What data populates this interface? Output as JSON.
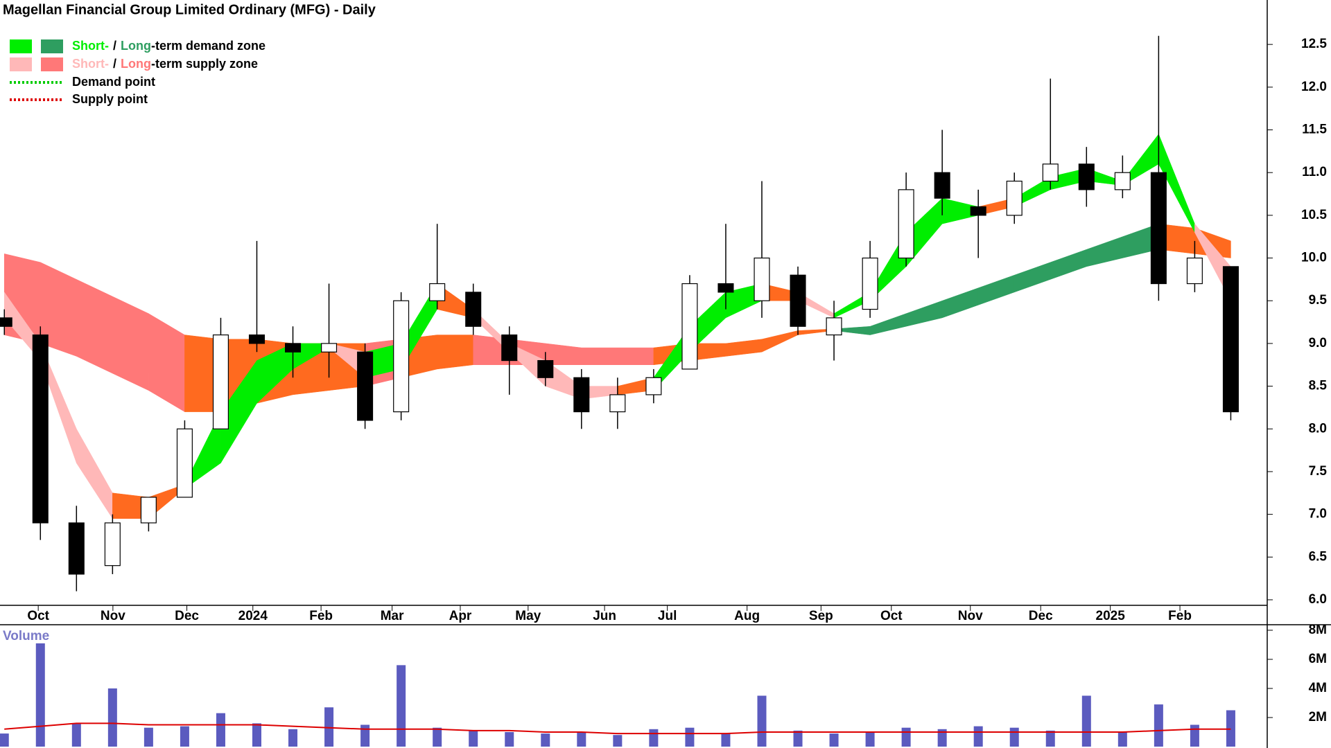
{
  "chart_data": [
    {
      "type": "candlestick",
      "title": "Magellan Financial Group Limited Ordinary (MFG) - Daily",
      "legend": {
        "zones": [
          {
            "short": "Short-",
            "sep": "/",
            "long": "Long",
            "rest": "-term demand zone",
            "short_color": "#00ee00",
            "long_color": "#2e9e60"
          },
          {
            "short": "Short-",
            "sep": "/",
            "long": "Long",
            "rest": "-term supply zone",
            "short_color": "#ffb8b8",
            "long_color": "#ff7878"
          }
        ],
        "points": [
          {
            "label": "Demand point",
            "color": "#00cc00"
          },
          {
            "label": "Supply point",
            "color": "#dd0000"
          }
        ]
      },
      "xlim": [
        -0.12,
        35.01
      ],
      "xticks": [
        {
          "value": 0.94,
          "label": "Oct"
        },
        {
          "value": 3.01,
          "label": "Nov"
        },
        {
          "value": 5.06,
          "label": "Dec"
        },
        {
          "value": 6.89,
          "label": "2024"
        },
        {
          "value": 8.78,
          "label": "Feb"
        },
        {
          "value": 10.75,
          "label": "Mar"
        },
        {
          "value": 12.64,
          "label": "Apr"
        },
        {
          "value": 14.52,
          "label": "May"
        },
        {
          "value": 16.64,
          "label": "Jun"
        },
        {
          "value": 18.38,
          "label": "Jul"
        },
        {
          "value": 20.59,
          "label": "Aug"
        },
        {
          "value": 22.64,
          "label": "Sep"
        },
        {
          "value": 24.59,
          "label": "Oct"
        },
        {
          "value": 26.78,
          "label": "Nov"
        },
        {
          "value": 28.73,
          "label": "Dec"
        },
        {
          "value": 30.66,
          "label": "2025"
        },
        {
          "value": 32.59,
          "label": "Feb"
        }
      ],
      "ylim": [
        5.935,
        13.02
      ],
      "yticks": [
        {
          "value": 6.0,
          "label": "6.0"
        },
        {
          "value": 6.5,
          "label": "6.5"
        },
        {
          "value": 7.0,
          "label": "7.0"
        },
        {
          "value": 7.5,
          "label": "7.5"
        },
        {
          "value": 8.0,
          "label": "8.0"
        },
        {
          "value": 8.5,
          "label": "8.5"
        },
        {
          "value": 9.0,
          "label": "9.0"
        },
        {
          "value": 9.5,
          "label": "9.5"
        },
        {
          "value": 10.0,
          "label": "10.0"
        },
        {
          "value": 10.5,
          "label": "10.5"
        },
        {
          "value": 11.0,
          "label": "11.0"
        },
        {
          "value": 11.5,
          "label": "11.5"
        },
        {
          "value": 12.0,
          "label": "12.0"
        },
        {
          "value": 12.5,
          "label": "12.5"
        }
      ],
      "open": [
        9.3,
        9.1,
        6.9,
        6.4,
        6.9,
        7.2,
        8.0,
        9.1,
        9.0,
        8.9,
        8.9,
        8.2,
        9.5,
        9.6,
        9.1,
        8.8,
        8.6,
        8.2,
        8.4,
        8.7,
        9.7,
        9.5,
        9.8,
        9.1,
        9.4,
        10.0,
        11.0,
        10.6,
        10.5,
        10.9,
        11.1,
        10.8,
        11.0,
        9.7,
        9.9
      ],
      "high": [
        9.4,
        9.2,
        7.1,
        7.0,
        7.2,
        8.1,
        9.3,
        10.2,
        9.2,
        9.7,
        9.0,
        9.6,
        10.4,
        9.7,
        9.2,
        8.9,
        8.7,
        8.6,
        8.7,
        9.8,
        10.4,
        10.9,
        9.9,
        9.5,
        10.2,
        11.0,
        11.5,
        10.8,
        11.0,
        12.1,
        11.3,
        11.2,
        12.6,
        10.2,
        9.9
      ],
      "low": [
        9.1,
        6.7,
        6.1,
        6.3,
        6.8,
        7.2,
        8.0,
        8.9,
        8.6,
        8.6,
        8.0,
        8.1,
        9.4,
        9.1,
        8.4,
        8.5,
        8.0,
        8.0,
        8.3,
        8.7,
        9.4,
        9.3,
        9.1,
        8.8,
        9.3,
        9.9,
        10.5,
        10.0,
        10.4,
        10.8,
        10.6,
        10.7,
        9.5,
        9.6,
        8.1
      ],
      "close": [
        9.2,
        6.9,
        6.3,
        6.9,
        7.2,
        8.0,
        9.1,
        9.0,
        8.9,
        9.0,
        8.1,
        9.5,
        9.7,
        9.2,
        8.8,
        8.6,
        8.2,
        8.4,
        8.6,
        9.7,
        9.6,
        10.0,
        9.2,
        9.3,
        10.0,
        10.8,
        10.7,
        10.5,
        10.9,
        11.1,
        10.8,
        11.0,
        9.7,
        10.0,
        8.2
      ],
      "up_color": "#ffffff",
      "down_color": "#000000",
      "zones": [
        {
          "upper": [
            10.05,
            9.95,
            9.75,
            9.55,
            9.35,
            9.1,
            9.05,
            9.05,
            9.0,
            9.0,
            9.0,
            9.05,
            9.1,
            9.1,
            9.05,
            9.0,
            8.95,
            8.95,
            8.95,
            9.0,
            9.0,
            9.05,
            9.15,
            9.17,
            9.2,
            9.35,
            9.5,
            9.65,
            9.8,
            9.95,
            10.1,
            10.25,
            10.4,
            10.35,
            10.2
          ],
          "lower": [
            9.1,
            9.0,
            8.85,
            8.65,
            8.45,
            8.2,
            8.2,
            8.3,
            8.4,
            8.45,
            8.5,
            8.6,
            8.7,
            8.75,
            8.75,
            8.75,
            8.75,
            8.75,
            8.75,
            8.8,
            8.85,
            8.9,
            9.1,
            9.15,
            9.1,
            9.2,
            9.3,
            9.45,
            9.6,
            9.75,
            9.9,
            10.0,
            10.1,
            10.05,
            10.0
          ],
          "colors": [
            "#ff7878",
            "#ff7878",
            "#ff7878",
            "#ff7878",
            "#ff7878",
            "#ff6a1f",
            "#ff6a1f",
            "#ff6a1f",
            "#ff6a1f",
            "#ff6a1f",
            "#ff7878",
            "#ff6a1f",
            "#ff6a1f",
            "#ff7878",
            "#ff7878",
            "#ff7878",
            "#ff7878",
            "#ff7878",
            "#ff6a1f",
            "#ff6a1f",
            "#ff6a1f",
            "#ff6a1f",
            "#ff6a1f",
            "#2e9e60",
            "#2e9e60",
            "#2e9e60",
            "#2e9e60",
            "#2e9e60",
            "#2e9e60",
            "#2e9e60",
            "#2e9e60",
            "#2e9e60",
            "#ff6a1f",
            "#ff6a1f"
          ]
        },
        {
          "upper": [
            9.6,
            9.0,
            8.0,
            7.25,
            7.2,
            7.35,
            8.2,
            8.8,
            9.0,
            9.0,
            8.9,
            9.0,
            9.7,
            9.4,
            9.0,
            8.8,
            8.5,
            8.5,
            8.6,
            9.2,
            9.6,
            9.7,
            9.6,
            9.35,
            9.6,
            10.3,
            10.7,
            10.6,
            10.7,
            10.95,
            11.05,
            10.9,
            11.45,
            10.4,
            9.9
          ],
          "lower": [
            9.3,
            8.8,
            7.6,
            6.95,
            6.95,
            7.3,
            7.6,
            8.3,
            8.7,
            8.95,
            8.6,
            8.7,
            9.4,
            9.3,
            8.9,
            8.5,
            8.35,
            8.4,
            8.45,
            8.9,
            9.3,
            9.5,
            9.5,
            9.3,
            9.5,
            9.9,
            10.4,
            10.5,
            10.6,
            10.8,
            10.9,
            10.85,
            11.1,
            10.3,
            9.5
          ],
          "colors": [
            "#ffb8b8",
            "#ffb8b8",
            "#ffb8b8",
            "#ff6a1f",
            "#ff6a1f",
            "#00ee00",
            "#00ee00",
            "#00ee00",
            "#00ee00",
            "#ffb8b8",
            "#00ee00",
            "#00ee00",
            "#ff6a1f",
            "#ffb8b8",
            "#ffb8b8",
            "#ffb8b8",
            "#ffb8b8",
            "#ff6a1f",
            "#00ee00",
            "#00ee00",
            "#00ee00",
            "#ff6a1f",
            "#ffb8b8",
            "#00ee00",
            "#00ee00",
            "#00ee00",
            "#00ee00",
            "#ff6a1f",
            "#00ee00",
            "#00ee00",
            "#00ee00",
            "#00ee00",
            "#00ee00",
            "#ffb8b8"
          ]
        }
      ]
    },
    {
      "type": "volume",
      "title": "Volume",
      "xlim": [
        -0.12,
        35.01
      ],
      "ylim": [
        0,
        8380000
      ],
      "yticks": [
        {
          "value": 2000000,
          "label": "2M"
        },
        {
          "value": 4000000,
          "label": "4M"
        },
        {
          "value": 6000000,
          "label": "6M"
        },
        {
          "value": 8000000,
          "label": "8M"
        }
      ],
      "values": [
        900000,
        7100000,
        1600000,
        4000000,
        1300000,
        1400000,
        2300000,
        1600000,
        1200000,
        2700000,
        1500000,
        5600000,
        1300000,
        1100000,
        1000000,
        900000,
        1000000,
        800000,
        1200000,
        1300000,
        900000,
        3500000,
        1100000,
        900000,
        1000000,
        1300000,
        1200000,
        1400000,
        1300000,
        1100000,
        3500000,
        1000000,
        2900000,
        1500000,
        2500000
      ],
      "color": "#5b5bbf",
      "average": [
        1200000,
        1400000,
        1600000,
        1600000,
        1500000,
        1500000,
        1500000,
        1500000,
        1400000,
        1300000,
        1200000,
        1200000,
        1200000,
        1100000,
        1100000,
        1000000,
        1000000,
        900000,
        900000,
        900000,
        900000,
        1000000,
        1000000,
        1000000,
        1000000,
        1000000,
        1000000,
        1000000,
        1000000,
        1000000,
        1000000,
        1000000,
        1100000,
        1200000,
        1200000
      ],
      "average_color": "#dd0000"
    }
  ]
}
